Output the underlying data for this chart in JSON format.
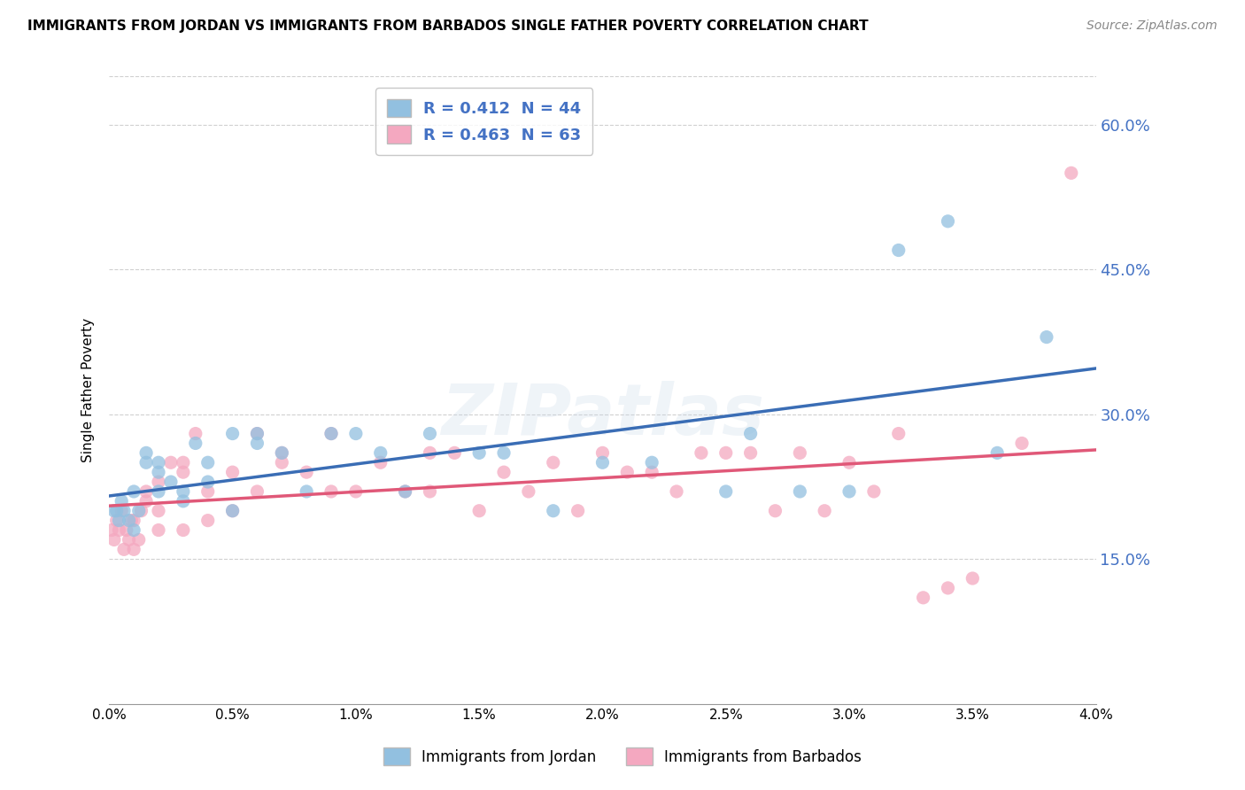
{
  "title": "IMMIGRANTS FROM JORDAN VS IMMIGRANTS FROM BARBADOS SINGLE FATHER POVERTY CORRELATION CHART",
  "source": "Source: ZipAtlas.com",
  "ylabel": "Single Father Poverty",
  "xlim": [
    0.0,
    0.04
  ],
  "ylim": [
    0.0,
    0.65
  ],
  "xtick_labels": [
    "0.0%",
    "0.5%",
    "1.0%",
    "1.5%",
    "2.0%",
    "2.5%",
    "3.0%",
    "3.5%",
    "4.0%"
  ],
  "xtick_values": [
    0.0,
    0.005,
    0.01,
    0.015,
    0.02,
    0.025,
    0.03,
    0.035,
    0.04
  ],
  "ytick_labels": [
    "15.0%",
    "30.0%",
    "45.0%",
    "60.0%"
  ],
  "ytick_values": [
    0.15,
    0.3,
    0.45,
    0.6
  ],
  "jordan_color": "#92c0e0",
  "barbados_color": "#f4a8c0",
  "jordan_line_color": "#3a6db5",
  "barbados_line_color": "#e05878",
  "jordan_R": 0.412,
  "jordan_N": 44,
  "barbados_R": 0.463,
  "barbados_N": 63,
  "watermark": "ZIPatlas",
  "background_color": "#ffffff",
  "grid_color": "#d0d0d0",
  "jordan_scatter_x": [
    0.0002,
    0.0003,
    0.0004,
    0.0005,
    0.0006,
    0.0008,
    0.001,
    0.001,
    0.0012,
    0.0015,
    0.0015,
    0.002,
    0.002,
    0.002,
    0.0025,
    0.003,
    0.003,
    0.0035,
    0.004,
    0.004,
    0.005,
    0.005,
    0.006,
    0.006,
    0.007,
    0.008,
    0.009,
    0.01,
    0.011,
    0.012,
    0.013,
    0.015,
    0.016,
    0.018,
    0.02,
    0.022,
    0.025,
    0.026,
    0.028,
    0.03,
    0.032,
    0.034,
    0.036,
    0.038
  ],
  "jordan_scatter_y": [
    0.2,
    0.2,
    0.19,
    0.21,
    0.2,
    0.19,
    0.18,
    0.22,
    0.2,
    0.25,
    0.26,
    0.22,
    0.24,
    0.25,
    0.23,
    0.22,
    0.21,
    0.27,
    0.23,
    0.25,
    0.2,
    0.28,
    0.27,
    0.28,
    0.26,
    0.22,
    0.28,
    0.28,
    0.26,
    0.22,
    0.28,
    0.26,
    0.26,
    0.2,
    0.25,
    0.25,
    0.22,
    0.28,
    0.22,
    0.22,
    0.47,
    0.5,
    0.26,
    0.38
  ],
  "barbados_scatter_x": [
    0.0001,
    0.0002,
    0.0003,
    0.0004,
    0.0005,
    0.0006,
    0.0007,
    0.0008,
    0.0009,
    0.001,
    0.001,
    0.0012,
    0.0013,
    0.0015,
    0.0015,
    0.002,
    0.002,
    0.002,
    0.0025,
    0.003,
    0.003,
    0.003,
    0.0035,
    0.004,
    0.004,
    0.005,
    0.005,
    0.006,
    0.006,
    0.007,
    0.007,
    0.008,
    0.009,
    0.009,
    0.01,
    0.011,
    0.012,
    0.013,
    0.013,
    0.014,
    0.015,
    0.016,
    0.017,
    0.018,
    0.019,
    0.02,
    0.021,
    0.022,
    0.023,
    0.024,
    0.025,
    0.026,
    0.027,
    0.028,
    0.029,
    0.03,
    0.031,
    0.032,
    0.033,
    0.034,
    0.035,
    0.037,
    0.039
  ],
  "barbados_scatter_y": [
    0.18,
    0.17,
    0.19,
    0.18,
    0.2,
    0.16,
    0.18,
    0.17,
    0.19,
    0.16,
    0.19,
    0.17,
    0.2,
    0.22,
    0.21,
    0.2,
    0.18,
    0.23,
    0.25,
    0.18,
    0.24,
    0.25,
    0.28,
    0.19,
    0.22,
    0.2,
    0.24,
    0.22,
    0.28,
    0.25,
    0.26,
    0.24,
    0.22,
    0.28,
    0.22,
    0.25,
    0.22,
    0.26,
    0.22,
    0.26,
    0.2,
    0.24,
    0.22,
    0.25,
    0.2,
    0.26,
    0.24,
    0.24,
    0.22,
    0.26,
    0.26,
    0.26,
    0.2,
    0.26,
    0.2,
    0.25,
    0.22,
    0.28,
    0.11,
    0.12,
    0.13,
    0.27,
    0.55
  ]
}
